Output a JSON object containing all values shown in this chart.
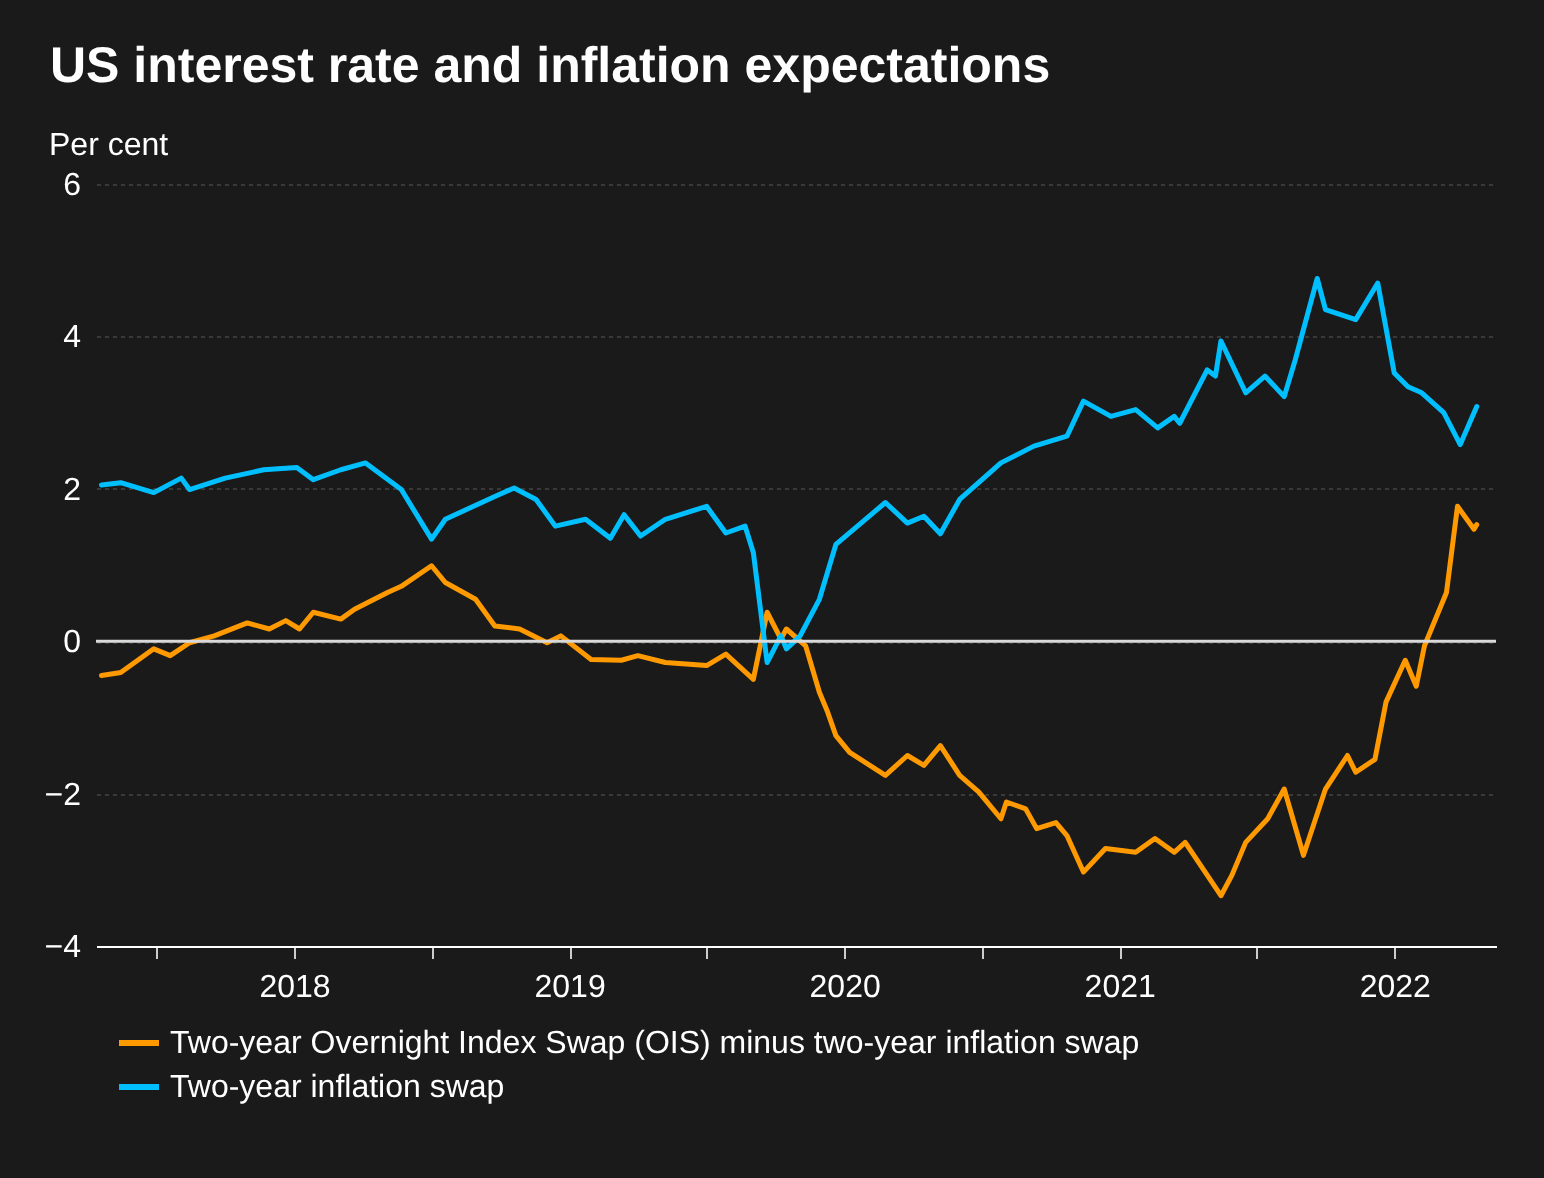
{
  "chart_data": {
    "type": "line",
    "title": "US interest rate and inflation expectations",
    "ylabel": "Per cent",
    "xlim": [
      2017.78,
      2022.87
    ],
    "ylim": [
      -4,
      6
    ],
    "yticks": [
      -4,
      -2,
      0,
      2,
      4,
      6
    ],
    "xticks": [
      {
        "value": 2018,
        "label": null
      },
      {
        "value": 2018.5,
        "label": "2018"
      },
      {
        "value": 2019,
        "label": null
      },
      {
        "value": 2019.5,
        "label": "2019"
      },
      {
        "value": 2020,
        "label": null
      },
      {
        "value": 2020.5,
        "label": "2020"
      },
      {
        "value": 2021,
        "label": null
      },
      {
        "value": 2021.5,
        "label": "2021"
      },
      {
        "value": 2022,
        "label": null
      },
      {
        "value": 2022.5,
        "label": "2022"
      }
    ],
    "grid": "y",
    "legend": "bottom",
    "line_style": "solid",
    "ref_lines": [
      {
        "axis": "y",
        "value": 0,
        "label": null,
        "color": "#d9d9d9"
      }
    ],
    "series": [
      {
        "name": "Two-year Overnight Index Swap (OIS) minus two-year inflation swap",
        "color": "#ff9900",
        "x": [
          2017.8,
          2017.87,
          2017.99,
          2018.05,
          2018.12,
          2018.21,
          2018.33,
          2018.41,
          2018.47,
          2018.52,
          2018.57,
          2018.67,
          2018.72,
          2018.84,
          2018.89,
          2019.0,
          2019.05,
          2019.16,
          2019.23,
          2019.32,
          2019.42,
          2019.47,
          2019.58,
          2019.69,
          2019.75,
          2019.85,
          2020.0,
          2020.07,
          2020.17,
          2020.22,
          2020.27,
          2020.29,
          2020.36,
          2020.41,
          2020.44,
          2020.47,
          2020.52,
          2020.65,
          2020.73,
          2020.79,
          2020.85,
          2020.92,
          2020.99,
          2021.07,
          2021.09,
          2021.16,
          2021.2,
          2021.27,
          2021.31,
          2021.37,
          2021.45,
          2021.56,
          2021.63,
          2021.7,
          2021.74,
          2021.82,
          2021.87,
          2021.91,
          2021.96,
          2022.04,
          2022.1,
          2022.17,
          2022.25,
          2022.33,
          2022.36,
          2022.43,
          2022.47,
          2022.54,
          2022.58,
          2022.61,
          2022.69,
          2022.73,
          2022.79,
          2022.8
        ],
        "values": [
          -0.45,
          -0.41,
          -0.1,
          -0.19,
          -0.02,
          0.07,
          0.24,
          0.16,
          0.27,
          0.16,
          0.38,
          0.29,
          0.42,
          0.64,
          0.72,
          0.99,
          0.77,
          0.55,
          0.2,
          0.16,
          -0.02,
          0.07,
          -0.24,
          -0.25,
          -0.19,
          -0.28,
          -0.32,
          -0.17,
          -0.5,
          0.38,
          0.03,
          0.16,
          -0.06,
          -0.67,
          -0.93,
          -1.24,
          -1.46,
          -1.76,
          -1.5,
          -1.63,
          -1.37,
          -1.76,
          -1.98,
          -2.33,
          -2.11,
          -2.2,
          -2.46,
          -2.38,
          -2.55,
          -3.03,
          -2.72,
          -2.77,
          -2.59,
          -2.77,
          -2.64,
          -3.07,
          -3.34,
          -3.07,
          -2.64,
          -2.33,
          -1.94,
          -2.81,
          -1.94,
          -1.5,
          -1.72,
          -1.55,
          -0.8,
          -0.25,
          -0.59,
          -0.06,
          0.64,
          1.77,
          1.47,
          1.53
        ]
      },
      {
        "name": "Two-year inflation swap",
        "color": "#00bfff",
        "x": [
          2017.8,
          2017.87,
          2017.99,
          2018.09,
          2018.12,
          2018.25,
          2018.39,
          2018.51,
          2018.57,
          2018.67,
          2018.76,
          2018.89,
          2019.0,
          2019.05,
          2019.23,
          2019.3,
          2019.38,
          2019.45,
          2019.56,
          2019.65,
          2019.7,
          2019.76,
          2019.85,
          2020.0,
          2020.07,
          2020.14,
          2020.17,
          2020.22,
          2020.27,
          2020.29,
          2020.34,
          2020.41,
          2020.47,
          2020.65,
          2020.73,
          2020.79,
          2020.85,
          2020.92,
          2021.07,
          2021.19,
          2021.31,
          2021.37,
          2021.47,
          2021.56,
          2021.64,
          2021.7,
          2021.72,
          2021.82,
          2021.85,
          2021.87,
          2021.96,
          2022.03,
          2022.1,
          2022.14,
          2022.22,
          2022.25,
          2022.36,
          2022.44,
          2022.5,
          2022.55,
          2022.6,
          2022.68,
          2022.74,
          2022.8
        ],
        "values": [
          2.05,
          2.08,
          1.95,
          2.14,
          1.99,
          2.14,
          2.25,
          2.28,
          2.12,
          2.25,
          2.34,
          1.99,
          1.34,
          1.6,
          1.9,
          2.01,
          1.86,
          1.51,
          1.6,
          1.35,
          1.66,
          1.38,
          1.6,
          1.77,
          1.42,
          1.51,
          1.16,
          -0.28,
          0.07,
          -0.1,
          0.07,
          0.55,
          1.27,
          1.82,
          1.55,
          1.64,
          1.41,
          1.86,
          2.34,
          2.56,
          2.69,
          3.15,
          2.95,
          3.04,
          2.8,
          2.95,
          2.86,
          3.56,
          3.48,
          3.94,
          3.26,
          3.48,
          3.21,
          3.69,
          4.76,
          4.35,
          4.22,
          4.7,
          3.52,
          3.34,
          3.26,
          3.0,
          2.58,
          3.08
        ]
      }
    ]
  }
}
